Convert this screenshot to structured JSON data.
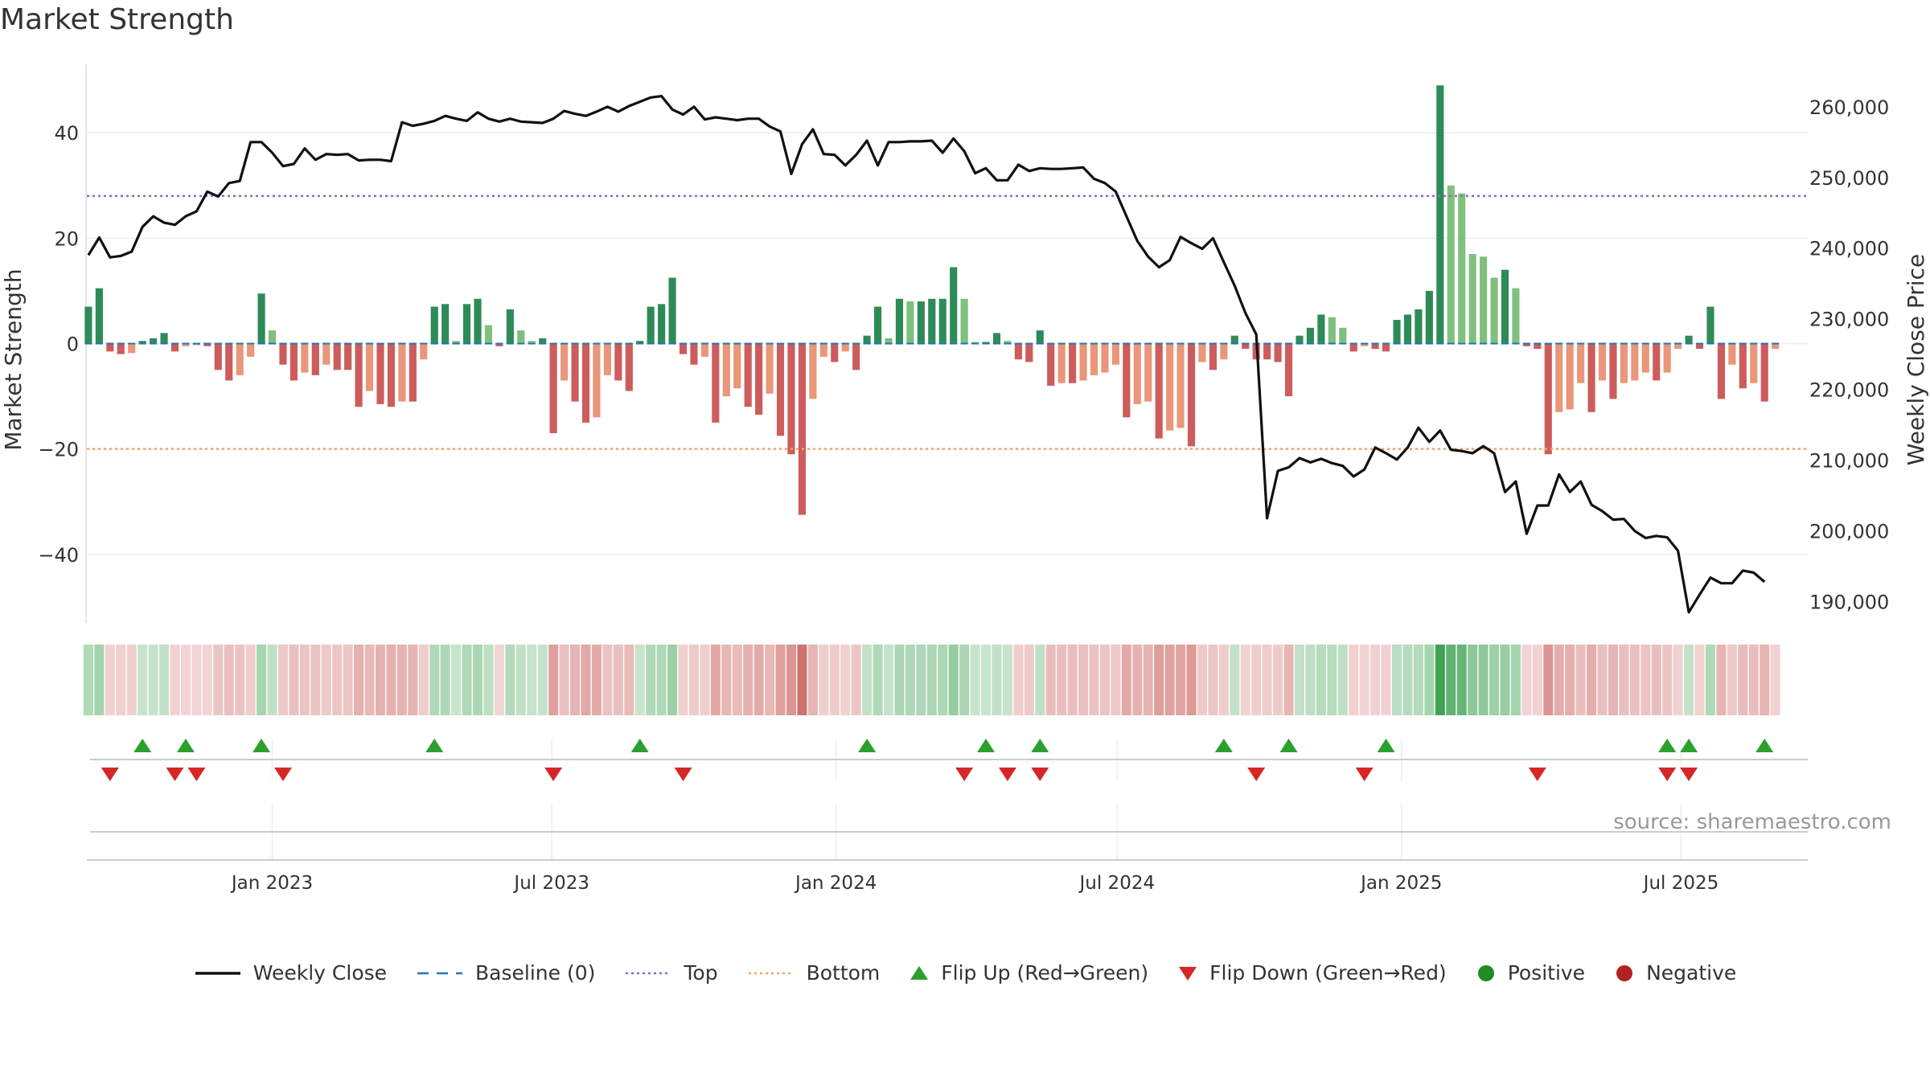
{
  "page": {
    "title": "Market Strength",
    "source": "source: sharemaestro.com"
  },
  "legend": [
    {
      "label": "Weekly Close",
      "kind": "line",
      "color": "#111111"
    },
    {
      "label": "Baseline (0)",
      "kind": "dash",
      "color": "#1f77b4"
    },
    {
      "label": "Top",
      "kind": "dot",
      "color": "#9467bd"
    },
    {
      "label": "Bottom",
      "kind": "dot",
      "color": "#f4a460"
    },
    {
      "label": "Flip Up (Red→Green)",
      "kind": "tri-up",
      "color": "#2ca02c"
    },
    {
      "label": "Flip Down (Green→Red)",
      "kind": "tri-down",
      "color": "#d62728"
    },
    {
      "label": "Positive",
      "kind": "circle",
      "color": "#228b22"
    },
    {
      "label": "Negative",
      "kind": "circle",
      "color": "#b22222"
    }
  ],
  "chart_data": {
    "type": "bar",
    "title": "Market Strength",
    "ylabel_left": "Market Strength",
    "ylabel_right": "Weekly Close Price",
    "left_ylim": [
      -53,
      53
    ],
    "left_yticks": [
      40,
      20,
      0,
      -20,
      -40
    ],
    "left_ytick_labels": [
      "40",
      "20",
      "0",
      "−20",
      "−40"
    ],
    "right_ylim": [
      187000,
      266000
    ],
    "right_yticks": [
      260000,
      250000,
      240000,
      230000,
      220000,
      210000,
      200000,
      190000
    ],
    "right_ytick_labels": [
      "260,000",
      "250,000",
      "240,000",
      "230,000",
      "220,000",
      "210,000",
      "200,000",
      "190,000"
    ],
    "top_level": 28,
    "bottom_level": -20,
    "x_start": "2022-09-03",
    "x_end": "2025-09-21",
    "xticks": [
      "2023-01-01",
      "2023-07-01",
      "2024-01-01",
      "2024-07-01",
      "2025-01-01",
      "2025-07-01"
    ],
    "xtick_labels": [
      "Jan 2023",
      "Jul 2023",
      "Jan 2024",
      "Jul 2024",
      "Jan 2025",
      "Jul 2025"
    ],
    "first_week": "2022-09-04",
    "series": [
      {
        "name": "Market Strength",
        "values": [
          7,
          10.5,
          -1.5,
          -2,
          -1.8,
          0.5,
          1,
          2,
          -1.5,
          -0.5,
          -0.3,
          -0.5,
          -5,
          -7,
          -6,
          -2.5,
          9.5,
          2.5,
          -4,
          -7,
          -5.5,
          -6,
          -4,
          -5,
          -5,
          -12,
          -9,
          -11.5,
          -12,
          -11,
          -11,
          -3,
          7,
          7.5,
          0.5,
          7.5,
          8.5,
          3.5,
          -0.5,
          6.5,
          2.5,
          0.5,
          1,
          -17,
          -7,
          -11,
          -15,
          -14,
          -6,
          -7,
          -9,
          0.5,
          7,
          7.5,
          12.5,
          -2,
          -4,
          -2.5,
          -15,
          -10,
          -8.5,
          -12,
          -13.5,
          -9.5,
          -17.5,
          -21,
          -32.5,
          -10.5,
          -2.5,
          -3.5,
          -1.5,
          -5,
          1.5,
          7,
          1,
          8.5,
          8,
          8,
          8.5,
          8.5,
          14.5,
          8.5,
          0.3,
          0.3,
          2,
          0.5,
          -3,
          -3.5,
          2.5,
          -8,
          -7.5,
          -7.5,
          -7,
          -6,
          -5.5,
          -4,
          -14,
          -11.5,
          -11,
          -18,
          -16.5,
          -16,
          -19.5,
          -3.5,
          -5,
          -3,
          1.5,
          -1,
          -3,
          -3,
          -3.5,
          -10,
          1.5,
          3,
          5.5,
          5,
          3,
          -1.5,
          -0.5,
          -1,
          -1.5,
          4.5,
          5.5,
          6.5,
          10,
          49,
          30,
          28.5,
          17,
          16.5,
          12.5,
          14,
          10.5,
          -0.5,
          -1,
          -21,
          -13,
          -12.5,
          -7.5,
          -13,
          -7,
          -10.5,
          -7.5,
          -7,
          -5.5,
          -7,
          -5.5,
          -1,
          1.5,
          -1,
          7,
          -10.5,
          -4,
          -8.5,
          -7.5,
          -11,
          -1
        ]
      },
      {
        "name": "Weekly Close",
        "values": [
          239000,
          241500,
          238700,
          238900,
          239500,
          243000,
          244500,
          243600,
          243300,
          244500,
          245200,
          248000,
          247300,
          249200,
          249500,
          255000,
          255000,
          253500,
          251600,
          251900,
          254100,
          252500,
          253300,
          253200,
          253300,
          252400,
          252500,
          252500,
          252300,
          257800,
          257300,
          257600,
          258000,
          258700,
          258300,
          258000,
          259200,
          258300,
          257900,
          258300,
          257900,
          257800,
          257700,
          258300,
          259400,
          259000,
          258700,
          259300,
          260000,
          259300,
          260100,
          260700,
          261300,
          261500,
          259600,
          258900,
          260000,
          258200,
          258500,
          258300,
          258100,
          258300,
          258300,
          257200,
          256500,
          250500,
          254700,
          256800,
          253300,
          253200,
          251700,
          253200,
          255200,
          251700,
          255000,
          255000,
          255100,
          255100,
          255200,
          253500,
          255500,
          253700,
          250600,
          251300,
          249600,
          249600,
          251800,
          250900,
          251300,
          251200,
          251200,
          251300,
          251400,
          249800,
          249200,
          248000,
          244500,
          241000,
          238800,
          237300,
          238300,
          241600,
          240700,
          239900,
          241400,
          238000,
          234700,
          230800,
          227800,
          201800,
          208500,
          209000,
          210300,
          209700,
          210200,
          209600,
          209200,
          207700,
          208700,
          211800,
          211000,
          210100,
          211800,
          214600,
          212600,
          214200,
          211500,
          211300,
          211000,
          212000,
          211000,
          205500,
          207000,
          199600,
          203600,
          203600,
          208000,
          205500,
          207000,
          203700,
          202800,
          201600,
          201700,
          200000,
          199000,
          199300,
          199100,
          197200,
          188500,
          191000,
          193400,
          192600,
          192600,
          194400,
          194100,
          192800
        ]
      }
    ],
    "flip_up_weeks": [
      5,
      9,
      16,
      32,
      51,
      72,
      83,
      88,
      105,
      111,
      120,
      146,
      148,
      155
    ],
    "flip_down_weeks": [
      2,
      8,
      10,
      18,
      43,
      55,
      81,
      85,
      88,
      108,
      118,
      134,
      146,
      148
    ]
  }
}
